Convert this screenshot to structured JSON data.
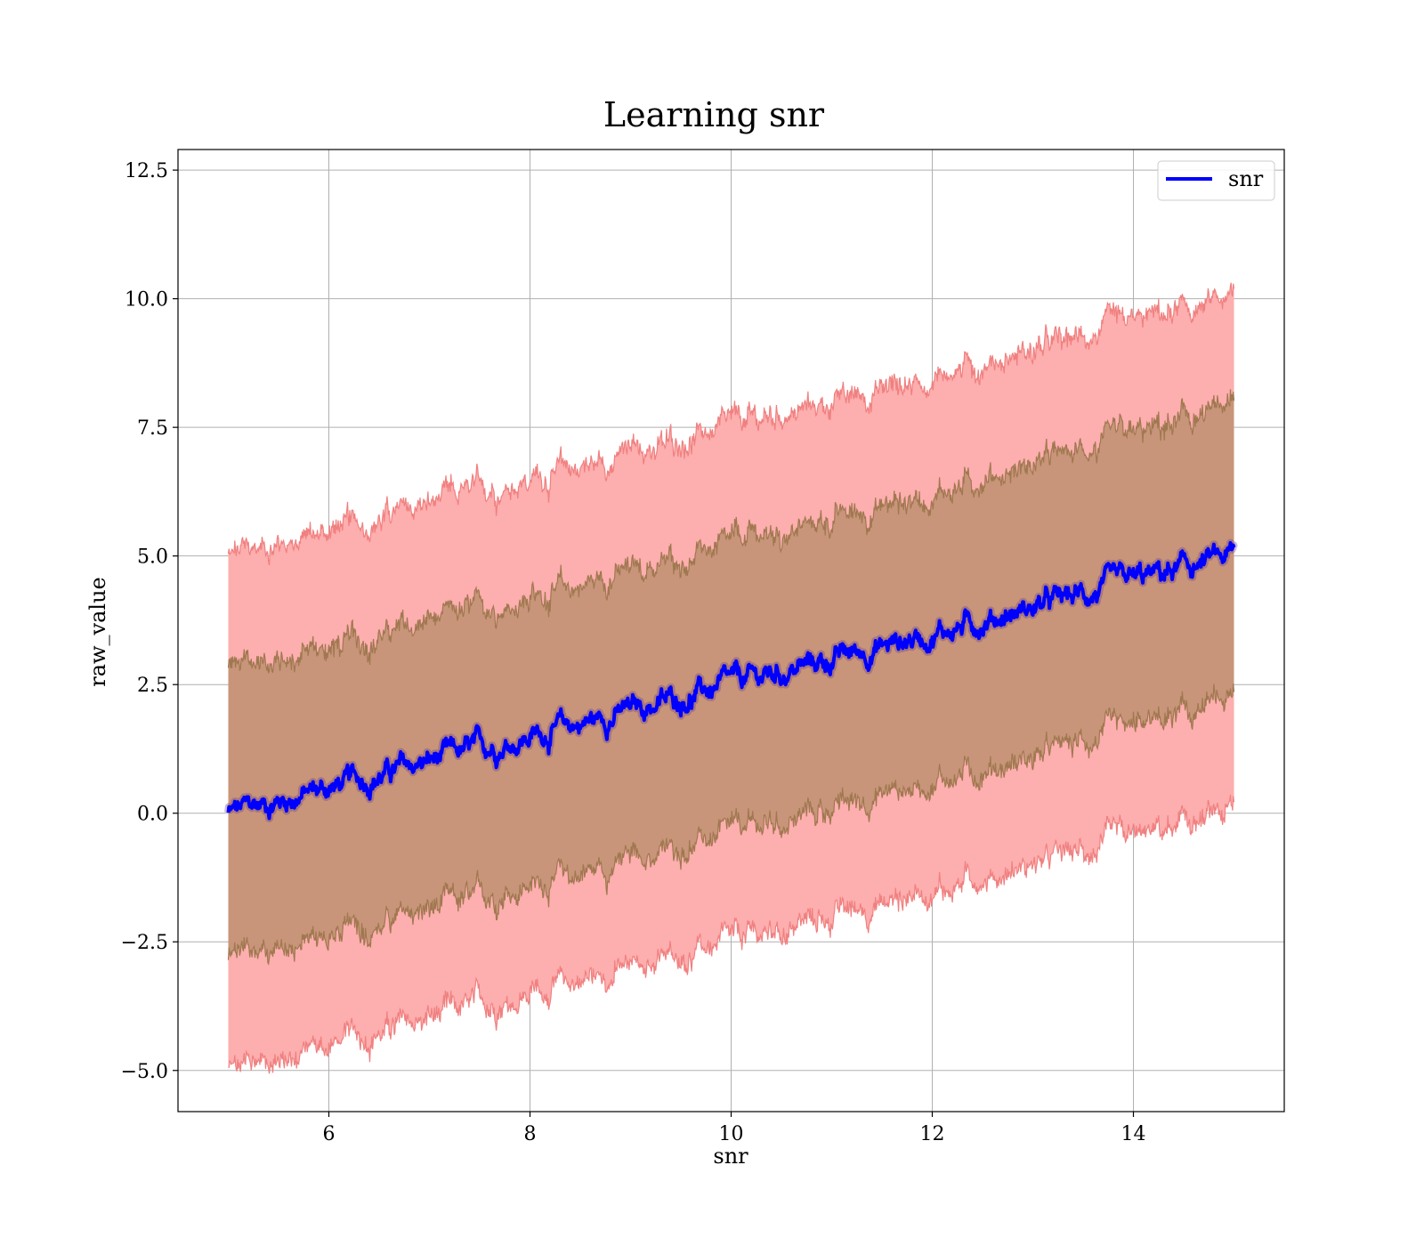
{
  "chart_data": {
    "type": "line",
    "title": "Learning snr",
    "xlabel": "snr",
    "ylabel": "raw_value",
    "xlim": [
      4.5,
      15.5
    ],
    "ylim": [
      -5.8,
      12.9
    ],
    "x_ticks": [
      6,
      8,
      10,
      12,
      14
    ],
    "x_tick_labels": [
      "6",
      "8",
      "10",
      "12",
      "14"
    ],
    "y_ticks": [
      -5.0,
      -2.5,
      0.0,
      2.5,
      5.0,
      7.5,
      10.0,
      12.5
    ],
    "y_tick_labels": [
      "−5.0",
      "−2.5",
      "0.0",
      "2.5",
      "5.0",
      "7.5",
      "10.0",
      "12.5"
    ],
    "grid": true,
    "legend_position": "top-right",
    "colors": {
      "line": "#0000ff",
      "outer_band": "#fdaeae",
      "outer_band_edge": "#f08080",
      "inner_band": "#c8957a",
      "inner_band_edge": "#a07850",
      "grid": "#b0b0b0"
    },
    "series": [
      {
        "name": "snr",
        "x": [
          5,
          6,
          7,
          8,
          9,
          10,
          11,
          12,
          13,
          14,
          15
        ],
        "y": [
          0.0,
          0.5,
          1.0,
          1.5,
          2.0,
          2.5,
          3.0,
          3.5,
          4.0,
          4.5,
          5.0
        ]
      }
    ],
    "bands": [
      {
        "x": [
          5,
          6,
          7,
          8,
          9,
          10,
          11,
          12,
          13,
          14,
          15
        ],
        "lower": [
          -5.0,
          -4.5,
          -4.0,
          -3.5,
          -3.0,
          -2.5,
          -2.0,
          -1.5,
          -1.0,
          -0.5,
          0.0
        ],
        "upper": [
          5.0,
          5.5,
          6.0,
          6.5,
          7.0,
          7.5,
          8.0,
          8.5,
          9.0,
          9.5,
          10.0
        ]
      },
      {
        "x": [
          5,
          6,
          7,
          8,
          9,
          10,
          11,
          12,
          13,
          14,
          15
        ],
        "lower": [
          -2.8,
          -2.4,
          -1.9,
          -1.4,
          -0.9,
          -0.4,
          0.1,
          0.6,
          1.1,
          1.6,
          2.2
        ],
        "upper": [
          2.8,
          3.2,
          3.7,
          4.2,
          4.7,
          5.2,
          5.7,
          6.2,
          6.8,
          7.3,
          7.9
        ]
      }
    ]
  }
}
